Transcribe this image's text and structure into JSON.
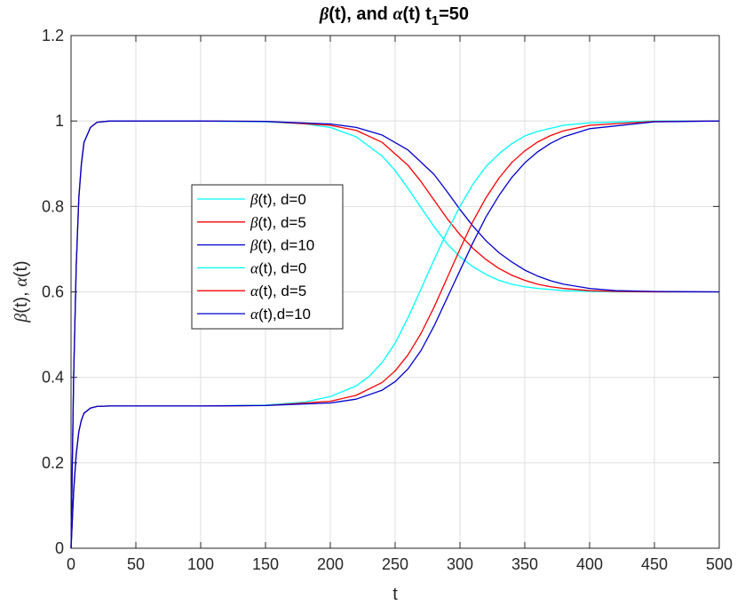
{
  "chart_data": {
    "type": "line",
    "title": {
      "beta_sym": "β",
      "part1": "(t), and ",
      "alpha_sym": "α",
      "part2": "(t) t",
      "sub": "1",
      "part3": "=50"
    },
    "xlabel": "t",
    "ylabel": {
      "beta_sym": "β",
      "part1": "(t), ",
      "alpha_sym": "α",
      "part2": "(t)"
    },
    "xlim": [
      0,
      500
    ],
    "ylim": [
      0,
      1.2
    ],
    "xticks": [
      0,
      50,
      100,
      150,
      200,
      250,
      300,
      350,
      400,
      450,
      500
    ],
    "yticks": [
      0,
      0.2,
      0.4,
      0.6,
      0.8,
      1,
      1.2
    ],
    "xtick_labels": [
      "0",
      "50",
      "100",
      "150",
      "200",
      "250",
      "300",
      "350",
      "400",
      "450",
      "500"
    ],
    "ytick_labels": [
      "0",
      "0.2",
      "0.4",
      "0.6",
      "0.8",
      "1",
      "1.2"
    ],
    "grid": true,
    "legend_position": "center-left",
    "series": [
      {
        "sym": "β",
        "label": "(t),  d=0",
        "color": "#00ffff",
        "x": [
          0,
          2,
          4,
          6,
          8,
          10,
          15,
          20,
          30,
          50,
          100,
          150,
          180,
          200,
          220,
          240,
          250,
          260,
          270,
          280,
          290,
          300,
          310,
          320,
          330,
          340,
          350,
          360,
          380,
          400,
          420,
          450,
          500
        ],
        "y": [
          0,
          0.4,
          0.66,
          0.82,
          0.9,
          0.95,
          0.985,
          0.997,
          1.0,
          1.0,
          1.0,
          0.998,
          0.993,
          0.985,
          0.963,
          0.918,
          0.884,
          0.842,
          0.797,
          0.753,
          0.713,
          0.682,
          0.659,
          0.641,
          0.627,
          0.618,
          0.612,
          0.608,
          0.603,
          0.601,
          0.6,
          0.6,
          0.6
        ]
      },
      {
        "sym": "β",
        "label": "(t), d=5",
        "color": "#ff0000",
        "x": [
          0,
          2,
          4,
          6,
          8,
          10,
          15,
          20,
          30,
          50,
          100,
          150,
          200,
          220,
          240,
          260,
          270,
          280,
          290,
          300,
          310,
          320,
          330,
          340,
          350,
          360,
          370,
          380,
          400,
          420,
          450,
          500
        ],
        "y": [
          0,
          0.4,
          0.66,
          0.82,
          0.9,
          0.95,
          0.985,
          0.997,
          1.0,
          1.0,
          1.0,
          0.999,
          0.99,
          0.978,
          0.95,
          0.896,
          0.858,
          0.815,
          0.772,
          0.734,
          0.702,
          0.676,
          0.655,
          0.639,
          0.627,
          0.618,
          0.612,
          0.608,
          0.603,
          0.601,
          0.6,
          0.6
        ]
      },
      {
        "sym": "β",
        "label": "(t), d=10",
        "color": "#0000cd",
        "x": [
          0,
          2,
          4,
          6,
          8,
          10,
          15,
          20,
          30,
          50,
          100,
          150,
          200,
          220,
          240,
          260,
          280,
          290,
          300,
          310,
          320,
          330,
          340,
          350,
          360,
          370,
          380,
          400,
          420,
          450,
          500
        ],
        "y": [
          0,
          0.4,
          0.66,
          0.82,
          0.9,
          0.95,
          0.985,
          0.997,
          1.0,
          1.0,
          1.0,
          0.999,
          0.993,
          0.985,
          0.967,
          0.932,
          0.875,
          0.835,
          0.793,
          0.754,
          0.72,
          0.692,
          0.67,
          0.651,
          0.637,
          0.626,
          0.618,
          0.608,
          0.603,
          0.601,
          0.6
        ]
      },
      {
        "sym": "α",
        "label": "(t), d=0",
        "color": "#00ffff",
        "x": [
          0,
          2,
          4,
          6,
          8,
          10,
          15,
          20,
          30,
          50,
          100,
          150,
          180,
          200,
          220,
          230,
          240,
          250,
          260,
          270,
          280,
          290,
          300,
          310,
          320,
          330,
          340,
          350,
          360,
          380,
          400,
          450,
          500
        ],
        "y": [
          0,
          0.133,
          0.22,
          0.273,
          0.3,
          0.316,
          0.328,
          0.332,
          0.333,
          0.333,
          0.333,
          0.335,
          0.342,
          0.355,
          0.38,
          0.402,
          0.435,
          0.48,
          0.54,
          0.607,
          0.675,
          0.74,
          0.8,
          0.852,
          0.893,
          0.923,
          0.947,
          0.965,
          0.976,
          0.99,
          0.996,
          1.0,
          1.0
        ]
      },
      {
        "sym": "α",
        "label": "(t), d=5",
        "color": "#ff0000",
        "x": [
          0,
          2,
          4,
          6,
          8,
          10,
          15,
          20,
          30,
          50,
          100,
          150,
          200,
          220,
          240,
          250,
          260,
          270,
          280,
          290,
          300,
          310,
          320,
          330,
          340,
          350,
          360,
          370,
          380,
          400,
          450,
          500
        ],
        "y": [
          0,
          0.133,
          0.22,
          0.273,
          0.3,
          0.316,
          0.328,
          0.332,
          0.333,
          0.333,
          0.333,
          0.334,
          0.344,
          0.358,
          0.388,
          0.415,
          0.453,
          0.503,
          0.564,
          0.632,
          0.7,
          0.765,
          0.82,
          0.866,
          0.903,
          0.93,
          0.951,
          0.966,
          0.977,
          0.99,
          0.999,
          1.0
        ]
      },
      {
        "sym": "α",
        "label": "(t),d=10",
        "color": "#0000cd",
        "x": [
          0,
          2,
          4,
          6,
          8,
          10,
          15,
          20,
          30,
          50,
          100,
          150,
          200,
          220,
          240,
          250,
          260,
          270,
          280,
          290,
          300,
          310,
          320,
          330,
          340,
          350,
          360,
          370,
          380,
          400,
          450,
          500
        ],
        "y": [
          0,
          0.133,
          0.22,
          0.273,
          0.3,
          0.316,
          0.328,
          0.332,
          0.333,
          0.333,
          0.333,
          0.334,
          0.34,
          0.349,
          0.37,
          0.39,
          0.42,
          0.463,
          0.52,
          0.585,
          0.65,
          0.715,
          0.775,
          0.825,
          0.868,
          0.902,
          0.928,
          0.948,
          0.963,
          0.982,
          0.998,
          1.0
        ]
      }
    ]
  }
}
